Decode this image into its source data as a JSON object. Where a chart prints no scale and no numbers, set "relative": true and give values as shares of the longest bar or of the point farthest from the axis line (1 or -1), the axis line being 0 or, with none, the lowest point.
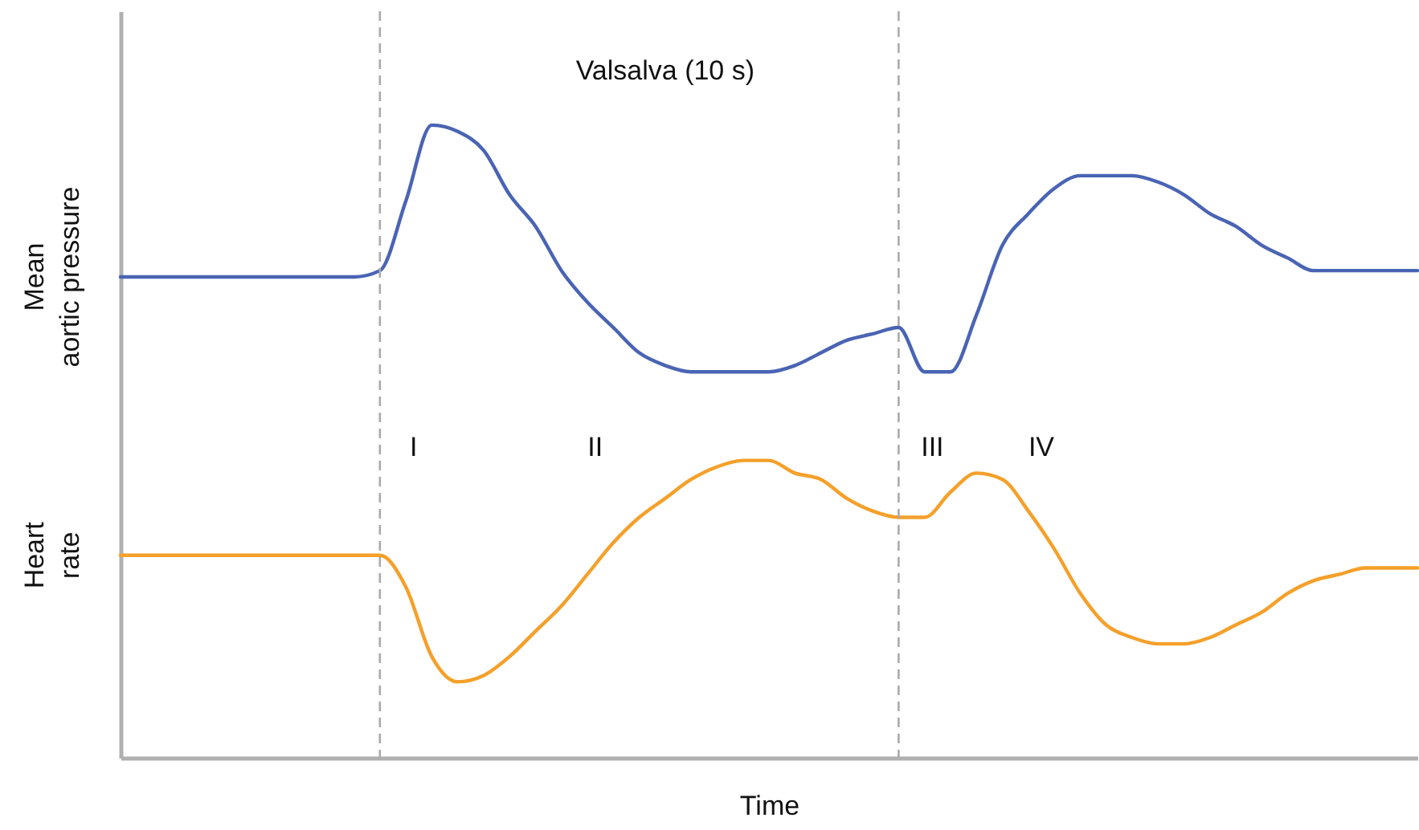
{
  "chart_data": {
    "type": "line",
    "relative": true,
    "xlabel": "Time",
    "grid": false,
    "annotations": [
      "Valsalva (10 s)",
      "I",
      "II",
      "III",
      "IV"
    ],
    "categories": [
      null,
      null,
      null,
      null,
      null,
      null,
      null,
      null,
      null,
      null,
      null,
      null,
      null,
      null,
      null,
      null,
      null,
      null,
      null,
      null,
      null,
      null,
      null,
      null,
      null,
      null,
      null,
      null,
      null,
      null,
      null,
      null,
      null,
      null,
      null,
      null,
      null,
      null,
      null,
      null,
      null,
      null,
      null,
      null,
      null,
      null,
      null,
      null,
      null,
      null,
      null
    ],
    "series": [
      {
        "name": "Mean aortic pressure",
        "color": "#4a64b4",
        "values": [
          0.76,
          0.76,
          0.76,
          0.76,
          0.76,
          0.76,
          0.76,
          0.76,
          0.76,
          0.76,
          0.77,
          0.88,
          1.0,
          0.99,
          0.96,
          0.89,
          0.84,
          0.77,
          0.72,
          0.68,
          0.64,
          0.62,
          0.61,
          0.61,
          0.61,
          0.61,
          0.62,
          0.64,
          0.66,
          0.67,
          0.68,
          0.61,
          0.61,
          0.7,
          0.81,
          0.86,
          0.9,
          0.92,
          0.92,
          0.92,
          0.91,
          0.89,
          0.86,
          0.84,
          0.81,
          0.79,
          0.77,
          0.77,
          0.77,
          0.77,
          0.77
        ]
      },
      {
        "name": "Heart rate",
        "color": "#f5a02a",
        "values": [
          0.32,
          0.32,
          0.32,
          0.32,
          0.32,
          0.32,
          0.32,
          0.32,
          0.32,
          0.32,
          0.32,
          0.27,
          0.16,
          0.12,
          0.13,
          0.16,
          0.2,
          0.24,
          0.29,
          0.34,
          0.38,
          0.41,
          0.44,
          0.46,
          0.47,
          0.47,
          0.45,
          0.44,
          0.41,
          0.39,
          0.38,
          0.38,
          0.42,
          0.45,
          0.44,
          0.39,
          0.33,
          0.26,
          0.21,
          0.19,
          0.18,
          0.18,
          0.19,
          0.21,
          0.23,
          0.26,
          0.28,
          0.29,
          0.3,
          0.3,
          0.3
        ]
      }
    ]
  }
}
